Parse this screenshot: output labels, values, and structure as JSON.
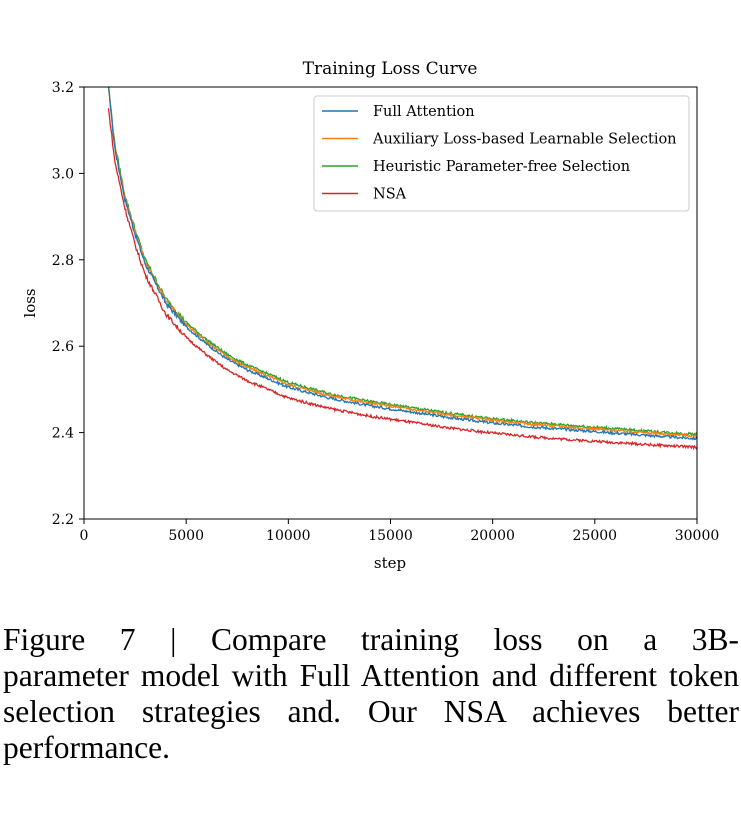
{
  "chart_data": {
    "type": "line",
    "title": "Training Loss Curve",
    "xlabel": "step",
    "ylabel": "loss",
    "xlim": [
      0,
      30000
    ],
    "ylim": [
      2.2,
      3.2
    ],
    "xticks": [
      0,
      5000,
      10000,
      15000,
      20000,
      25000,
      30000
    ],
    "yticks": [
      2.2,
      2.4,
      2.6,
      2.8,
      3.0,
      3.2
    ],
    "ytick_labels": [
      "2.2",
      "2.4",
      "2.6",
      "2.8",
      "3.0",
      "3.2"
    ],
    "grid": false,
    "legend_position": "top-right",
    "x": [
      1200,
      1500,
      2000,
      2500,
      3000,
      4000,
      5000,
      6000,
      7000,
      8000,
      9000,
      10000,
      12000,
      14000,
      16000,
      18000,
      20000,
      22000,
      24000,
      26000,
      28000,
      30000
    ],
    "series": [
      {
        "name": "Full Attention",
        "color": "#1f77b4",
        "values": [
          3.2,
          3.06,
          2.94,
          2.86,
          2.79,
          2.7,
          2.645,
          2.605,
          2.57,
          2.545,
          2.525,
          2.505,
          2.48,
          2.462,
          2.448,
          2.434,
          2.422,
          2.413,
          2.406,
          2.399,
          2.392,
          2.386
        ]
      },
      {
        "name": "Auxiliary Loss-based Learnable Selection",
        "color": "#ff7f0e",
        "values": [
          3.2,
          3.065,
          2.945,
          2.865,
          2.795,
          2.705,
          2.65,
          2.61,
          2.576,
          2.551,
          2.531,
          2.511,
          2.486,
          2.468,
          2.454,
          2.44,
          2.428,
          2.419,
          2.412,
          2.405,
          2.398,
          2.392
        ]
      },
      {
        "name": "Heuristic Parameter-free Selection",
        "color": "#2ca02c",
        "values": [
          3.2,
          3.07,
          2.95,
          2.87,
          2.8,
          2.71,
          2.655,
          2.615,
          2.581,
          2.556,
          2.536,
          2.516,
          2.49,
          2.472,
          2.458,
          2.444,
          2.432,
          2.423,
          2.416,
          2.409,
          2.402,
          2.396
        ]
      },
      {
        "name": "NSA",
        "color": "#d62728",
        "values": [
          3.15,
          3.03,
          2.92,
          2.835,
          2.765,
          2.675,
          2.62,
          2.58,
          2.545,
          2.52,
          2.5,
          2.48,
          2.456,
          2.438,
          2.424,
          2.41,
          2.399,
          2.39,
          2.383,
          2.377,
          2.371,
          2.366
        ]
      }
    ]
  },
  "caption": {
    "lead": "Figure 7 | Compare training loss on a 3B-",
    "rest": "parameter model with Full Attention and different token selection strategies and. Our NSA achieves better performance."
  }
}
